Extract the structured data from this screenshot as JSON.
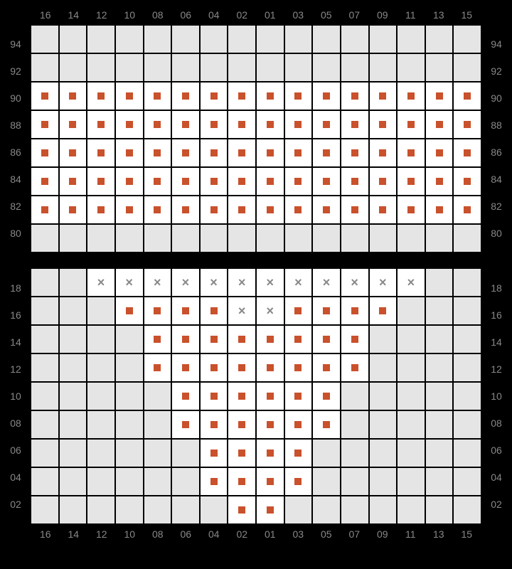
{
  "layout": {
    "cell_size": 38,
    "gap": 2,
    "columns": 16,
    "colors": {
      "page_bg": "#000000",
      "empty_cell": "#e5e5e5",
      "available_cell": "#ffffff",
      "marker": "#c9512c",
      "label_text": "#888888",
      "cross_text": "#888888"
    },
    "label_fontsize": 14
  },
  "column_labels": [
    "16",
    "14",
    "12",
    "10",
    "08",
    "06",
    "04",
    "02",
    "01",
    "03",
    "05",
    "07",
    "09",
    "11",
    "13",
    "15"
  ],
  "top_grid": {
    "row_labels": [
      "94",
      "92",
      "90",
      "88",
      "86",
      "84",
      "82",
      "80"
    ],
    "rows": 8,
    "cells": [
      [
        "e",
        "e",
        "e",
        "e",
        "e",
        "e",
        "e",
        "e",
        "e",
        "e",
        "e",
        "e",
        "e",
        "e",
        "e",
        "e"
      ],
      [
        "e",
        "e",
        "e",
        "e",
        "e",
        "e",
        "e",
        "e",
        "e",
        "e",
        "e",
        "e",
        "e",
        "e",
        "e",
        "e"
      ],
      [
        "m",
        "m",
        "m",
        "m",
        "m",
        "m",
        "m",
        "m",
        "m",
        "m",
        "m",
        "m",
        "m",
        "m",
        "m",
        "m"
      ],
      [
        "m",
        "m",
        "m",
        "m",
        "m",
        "m",
        "m",
        "m",
        "m",
        "m",
        "m",
        "m",
        "m",
        "m",
        "m",
        "m"
      ],
      [
        "m",
        "m",
        "m",
        "m",
        "m",
        "m",
        "m",
        "m",
        "m",
        "m",
        "m",
        "m",
        "m",
        "m",
        "m",
        "m"
      ],
      [
        "m",
        "m",
        "m",
        "m",
        "m",
        "m",
        "m",
        "m",
        "m",
        "m",
        "m",
        "m",
        "m",
        "m",
        "m",
        "m"
      ],
      [
        "m",
        "m",
        "m",
        "m",
        "m",
        "m",
        "m",
        "m",
        "m",
        "m",
        "m",
        "m",
        "m",
        "m",
        "m",
        "m"
      ],
      [
        "e",
        "e",
        "e",
        "e",
        "e",
        "e",
        "e",
        "e",
        "e",
        "e",
        "e",
        "e",
        "e",
        "e",
        "e",
        "e"
      ]
    ]
  },
  "bottom_grid": {
    "row_labels": [
      "18",
      "16",
      "14",
      "12",
      "10",
      "08",
      "06",
      "04",
      "02"
    ],
    "rows": 9,
    "cells": [
      [
        "e",
        "e",
        "x",
        "x",
        "x",
        "x",
        "x",
        "x",
        "x",
        "x",
        "x",
        "x",
        "x",
        "x",
        "e",
        "e"
      ],
      [
        "e",
        "e",
        "e",
        "m",
        "m",
        "m",
        "m",
        "x",
        "x",
        "m",
        "m",
        "m",
        "m",
        "e",
        "e",
        "e"
      ],
      [
        "e",
        "e",
        "e",
        "e",
        "m",
        "m",
        "m",
        "m",
        "m",
        "m",
        "m",
        "m",
        "e",
        "e",
        "e",
        "e"
      ],
      [
        "e",
        "e",
        "e",
        "e",
        "m",
        "m",
        "m",
        "m",
        "m",
        "m",
        "m",
        "m",
        "e",
        "e",
        "e",
        "e"
      ],
      [
        "e",
        "e",
        "e",
        "e",
        "e",
        "m",
        "m",
        "m",
        "m",
        "m",
        "m",
        "e",
        "e",
        "e",
        "e",
        "e"
      ],
      [
        "e",
        "e",
        "e",
        "e",
        "e",
        "m",
        "m",
        "m",
        "m",
        "m",
        "m",
        "e",
        "e",
        "e",
        "e",
        "e"
      ],
      [
        "e",
        "e",
        "e",
        "e",
        "e",
        "e",
        "m",
        "m",
        "m",
        "m",
        "e",
        "e",
        "e",
        "e",
        "e",
        "e"
      ],
      [
        "e",
        "e",
        "e",
        "e",
        "e",
        "e",
        "m",
        "m",
        "m",
        "m",
        "e",
        "e",
        "e",
        "e",
        "e",
        "e"
      ],
      [
        "e",
        "e",
        "e",
        "e",
        "e",
        "e",
        "e",
        "m",
        "m",
        "e",
        "e",
        "e",
        "e",
        "e",
        "e",
        "e"
      ]
    ]
  }
}
